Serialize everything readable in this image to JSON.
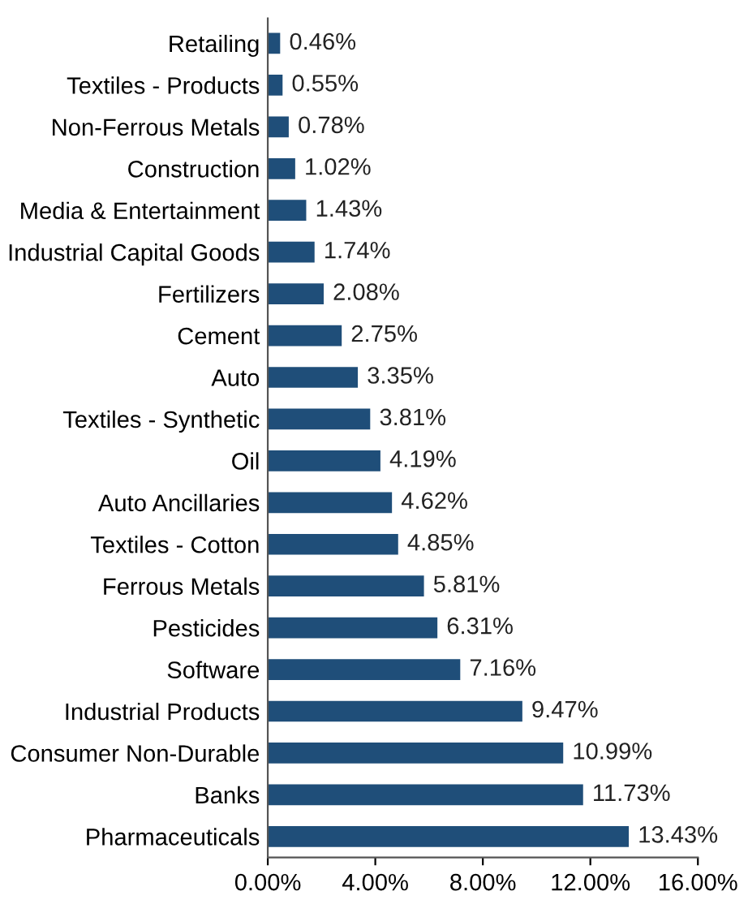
{
  "chart_data": {
    "type": "bar",
    "orientation": "horizontal",
    "color": "#1f4e79",
    "categories": [
      "Retailing",
      "Textiles - Products",
      "Non-Ferrous Metals",
      "Construction",
      "Media & Entertainment",
      "Industrial Capital Goods",
      "Fertilizers",
      "Cement",
      "Auto",
      "Textiles - Synthetic",
      "Oil",
      "Auto Ancillaries",
      "Textiles - Cotton",
      "Ferrous Metals",
      "Pesticides",
      "Software",
      "Industrial Products",
      "Consumer Non-Durable",
      "Banks",
      "Pharmaceuticals"
    ],
    "values": [
      0.46,
      0.55,
      0.78,
      1.02,
      1.43,
      1.74,
      2.08,
      2.75,
      3.35,
      3.81,
      4.19,
      4.62,
      4.85,
      5.81,
      6.31,
      7.16,
      9.47,
      10.99,
      11.73,
      13.43
    ],
    "value_labels": [
      "0.46%",
      "0.55%",
      "0.78%",
      "1.02%",
      "1.43%",
      "1.74%",
      "2.08%",
      "2.75%",
      "3.35%",
      "3.81%",
      "4.19%",
      "4.62%",
      "4.85%",
      "5.81%",
      "6.31%",
      "7.16%",
      "9.47%",
      "10.99%",
      "11.73%",
      "13.43%"
    ],
    "xlim": [
      0,
      16
    ],
    "xticks": [
      {
        "value": 0,
        "label": "0.00%"
      },
      {
        "value": 4,
        "label": "4.00%"
      },
      {
        "value": 8,
        "label": "8.00%"
      },
      {
        "value": 12,
        "label": "12.00%"
      },
      {
        "value": 16,
        "label": "16.00%"
      }
    ],
    "grid": false
  }
}
